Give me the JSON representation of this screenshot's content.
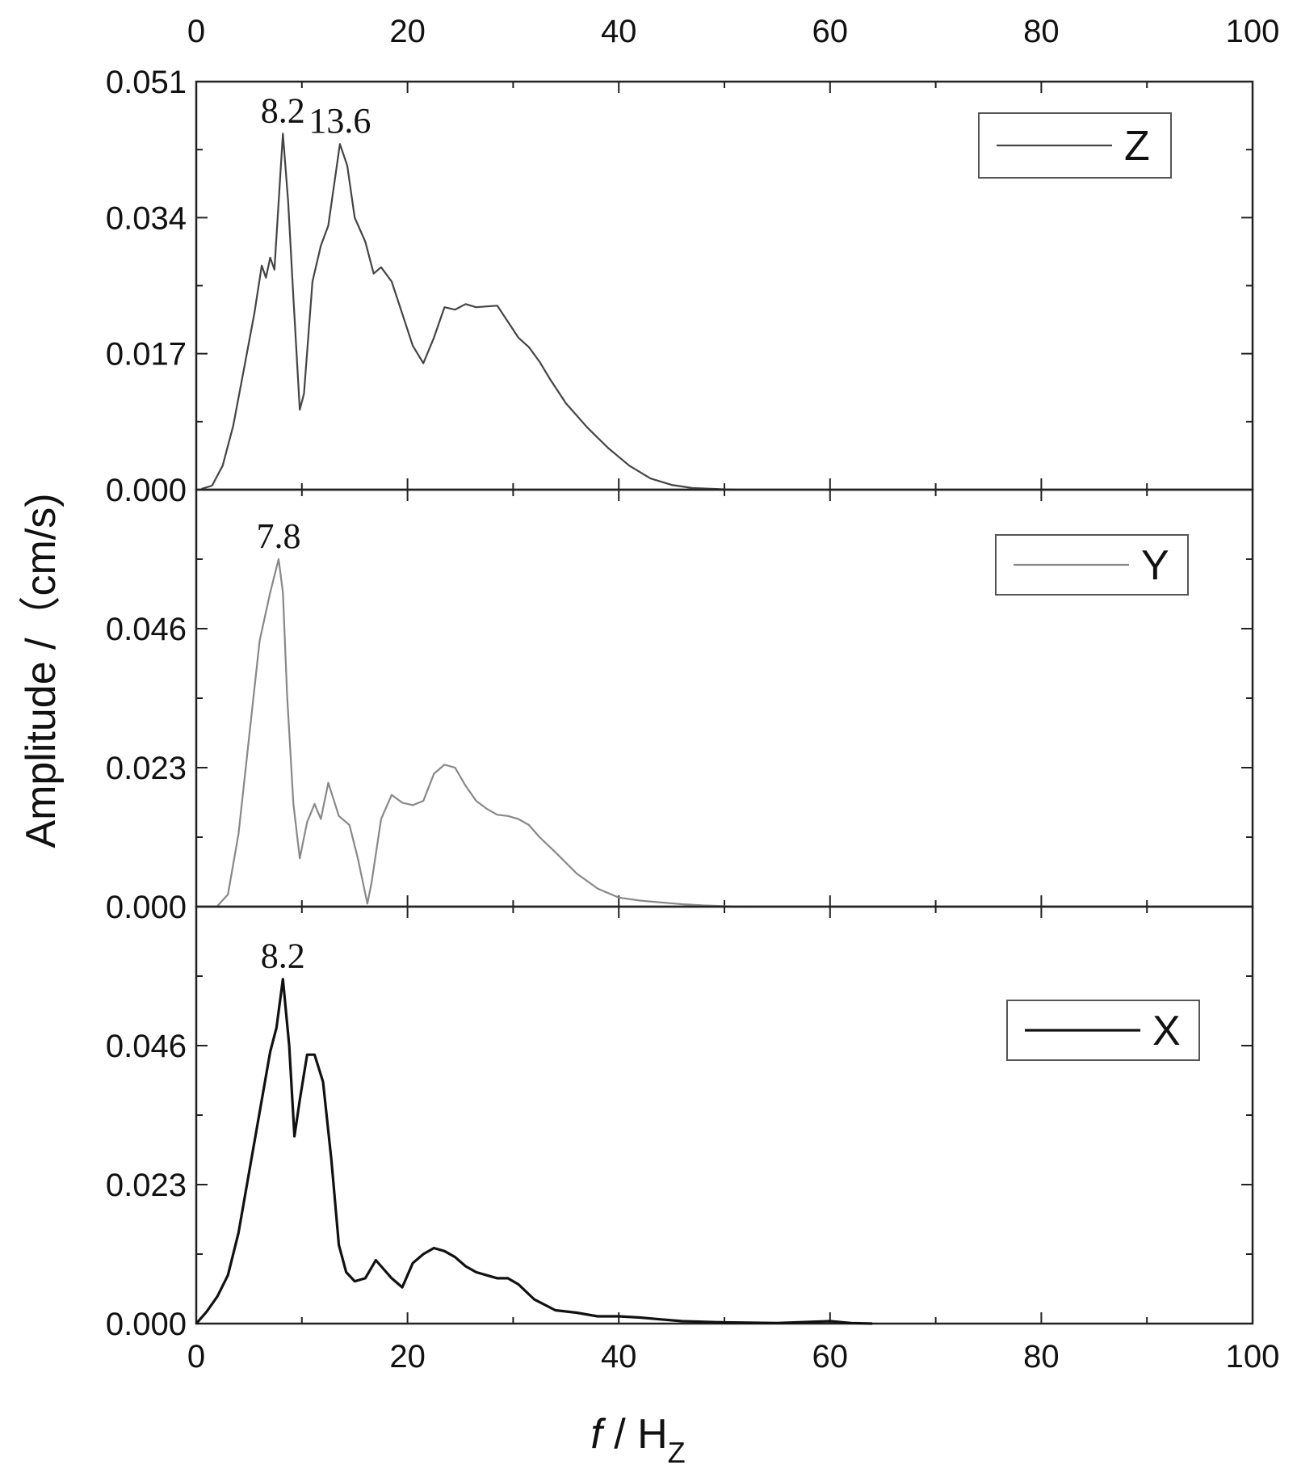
{
  "figure": {
    "ylabel": "Amplitude /（cm/s)",
    "xlabel_italic": "f",
    "xlabel_rest": " / H",
    "xlabel_sub": "Z"
  },
  "chart_data": {
    "type": "line",
    "x_axis": {
      "xlim": [
        0,
        100
      ],
      "ticks": [
        0,
        20,
        40,
        60,
        80,
        100
      ],
      "tick_labels": [
        "0",
        "20",
        "40",
        "60",
        "80",
        "100"
      ]
    },
    "grid": false,
    "legend_placement": "top-right",
    "panels": [
      {
        "name": "Z",
        "color": "#444444",
        "ylim": [
          0,
          0.051
        ],
        "yticks": [
          0.0,
          0.017,
          0.034,
          0.051
        ],
        "ytick_labels": [
          "0.000",
          "0.017",
          "0.034",
          "0.051"
        ],
        "annotations": [
          {
            "x": 8.2,
            "y": 0.0445,
            "text": "8.2"
          },
          {
            "x": 13.6,
            "y": 0.0432,
            "text": "13.6"
          }
        ],
        "series": [
          {
            "name": "Z",
            "x": [
              0.5,
              1.5,
              2.5,
              3.5,
              4.5,
              5.5,
              6.2,
              6.6,
              7.0,
              7.4,
              8.2,
              8.7,
              9.2,
              9.8,
              10.2,
              11.0,
              11.8,
              12.5,
              13.6,
              14.3,
              15.0,
              16.0,
              16.8,
              17.5,
              18.5,
              19.5,
              20.5,
              21.5,
              22.5,
              23.5,
              24.5,
              25.5,
              26.5,
              27.5,
              28.5,
              29.5,
              30.5,
              31.5,
              32.5,
              33.5,
              35,
              37,
              39,
              41,
              43,
              45,
              47,
              49,
              51
            ],
            "y": [
              0.0001,
              0.0005,
              0.003,
              0.008,
              0.015,
              0.022,
              0.028,
              0.0265,
              0.029,
              0.0275,
              0.0445,
              0.036,
              0.024,
              0.01,
              0.012,
              0.026,
              0.0305,
              0.033,
              0.0432,
              0.0405,
              0.034,
              0.031,
              0.027,
              0.0278,
              0.026,
              0.022,
              0.018,
              0.0158,
              0.019,
              0.0228,
              0.0225,
              0.0232,
              0.0228,
              0.0229,
              0.023,
              0.021,
              0.019,
              0.0178,
              0.016,
              0.0138,
              0.0108,
              0.0078,
              0.0052,
              0.003,
              0.0014,
              0.0006,
              0.0002,
              0.0001,
              0.0
            ]
          }
        ]
      },
      {
        "name": "Y",
        "color": "#888888",
        "ylim": [
          0,
          0.069
        ],
        "yticks": [
          0.0,
          0.023,
          0.046
        ],
        "ytick_labels": [
          "0.000",
          "0.023",
          "0.046"
        ],
        "annotations": [
          {
            "x": 7.8,
            "y": 0.0575,
            "text": "7.8"
          }
        ],
        "series": [
          {
            "name": "Y",
            "x": [
              2,
              3,
              4,
              5,
              6,
              7,
              7.8,
              8.2,
              8.6,
              9.2,
              9.8,
              10.5,
              11.2,
              11.8,
              12.5,
              13.5,
              14.5,
              15.3,
              16.2,
              16.6,
              17.5,
              18.5,
              19.5,
              20.5,
              21.5,
              22.5,
              23.5,
              24.5,
              25.5,
              26.5,
              27.5,
              28.5,
              29.5,
              30.5,
              31.5,
              32.5,
              34,
              36,
              38,
              40,
              42,
              44,
              46,
              48,
              50,
              52
            ],
            "y": [
              0.0001,
              0.002,
              0.012,
              0.028,
              0.044,
              0.052,
              0.0575,
              0.052,
              0.035,
              0.017,
              0.008,
              0.014,
              0.017,
              0.0145,
              0.0205,
              0.015,
              0.0135,
              0.008,
              0.0005,
              0.004,
              0.0145,
              0.0185,
              0.0172,
              0.0168,
              0.0175,
              0.022,
              0.0235,
              0.023,
              0.02,
              0.0175,
              0.0162,
              0.0152,
              0.015,
              0.0145,
              0.0135,
              0.0115,
              0.009,
              0.0055,
              0.003,
              0.0015,
              0.001,
              0.0007,
              0.0004,
              0.0002,
              0.0001,
              0.0
            ]
          }
        ]
      },
      {
        "name": "X",
        "color": "#111111",
        "ylim": [
          0,
          0.069
        ],
        "yticks": [
          0.0,
          0.023,
          0.046
        ],
        "ytick_labels": [
          "0.000",
          "0.023",
          "0.046"
        ],
        "annotations": [
          {
            "x": 8.2,
            "y": 0.057,
            "text": "8.2"
          }
        ],
        "series": [
          {
            "name": "X",
            "x": [
              0,
              1,
              2,
              3,
              4,
              5,
              6,
              7,
              7.6,
              8.2,
              8.8,
              9.3,
              9.8,
              10.5,
              11.2,
              12,
              12.8,
              13.5,
              14.2,
              15,
              16,
              17,
              17.5,
              18.5,
              19.5,
              20.5,
              21.5,
              22.5,
              23.5,
              24.5,
              25.5,
              26.5,
              27.5,
              28.5,
              29.5,
              30.5,
              32,
              34,
              36,
              38,
              40,
              42,
              44,
              46,
              50,
              55,
              60,
              62,
              64
            ],
            "y": [
              0.0,
              0.002,
              0.0045,
              0.008,
              0.015,
              0.025,
              0.035,
              0.045,
              0.049,
              0.057,
              0.046,
              0.031,
              0.037,
              0.0445,
              0.0445,
              0.04,
              0.027,
              0.013,
              0.0085,
              0.007,
              0.0075,
              0.0105,
              0.0095,
              0.0075,
              0.006,
              0.01,
              0.0115,
              0.0125,
              0.012,
              0.011,
              0.0095,
              0.0085,
              0.008,
              0.0075,
              0.0075,
              0.0065,
              0.004,
              0.0022,
              0.0018,
              0.0012,
              0.0012,
              0.001,
              0.0007,
              0.0004,
              0.0002,
              0.0001,
              0.0004,
              0.0001,
              0.0
            ]
          }
        ]
      }
    ]
  }
}
